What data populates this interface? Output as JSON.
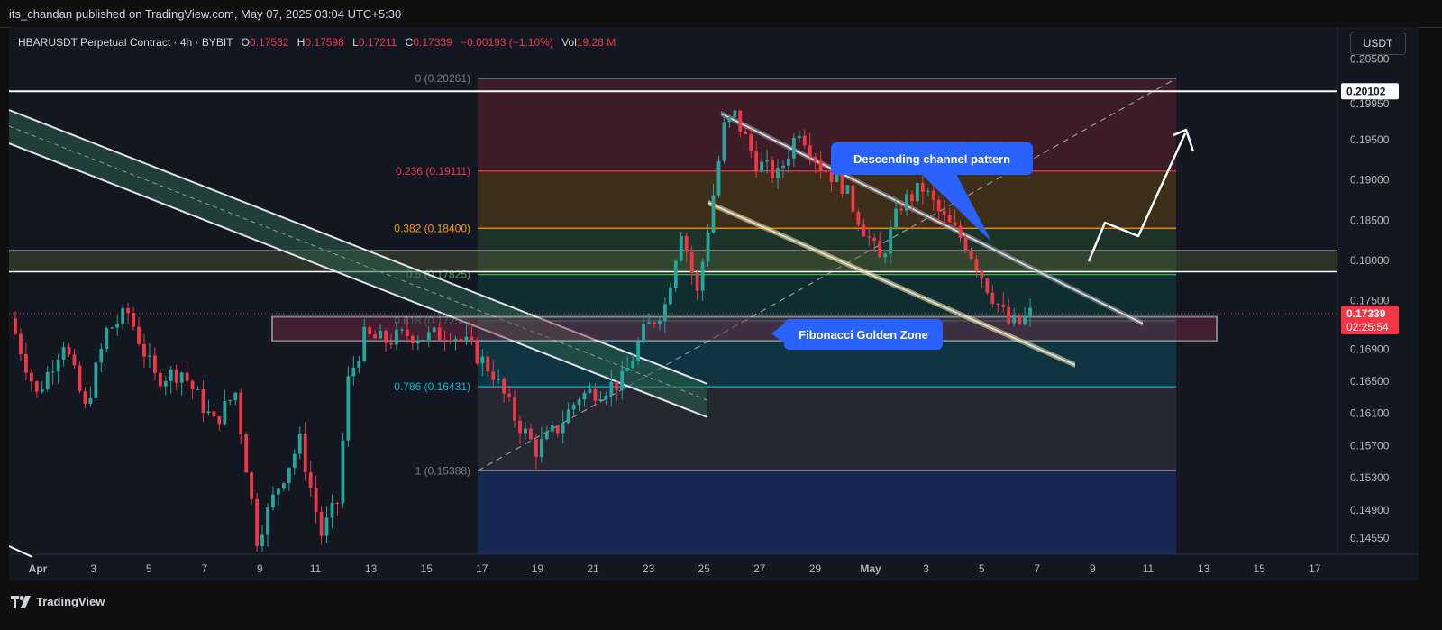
{
  "header": {
    "publisher_line": "its_chandan published on TradingView.com, May 07, 2025 03:04 UTC+5:30"
  },
  "legend": {
    "symbol": "HBARUSDT Perpetual Contract · 4h · BYBIT",
    "open_label": "O",
    "open": "0.17532",
    "high_label": "H",
    "high": "0.17598",
    "low_label": "L",
    "low": "0.17211",
    "close_label": "C",
    "close": "0.17339",
    "change": "−0.00193 (−1.10%)",
    "vol_label": "Vol",
    "vol": "19.28 M"
  },
  "unit_button": "USDT",
  "footer": {
    "brand": "TradingView"
  },
  "colors": {
    "background": "#131722",
    "up": "#26a69a",
    "down": "#f23645",
    "accent": "#2962ff"
  },
  "chart_data": {
    "type": "candlestick",
    "title": "",
    "ylim": [
      0.1435,
      0.209
    ],
    "price_ticks": [
      "0.20500",
      "0.19950",
      "0.19500",
      "0.19000",
      "0.18500",
      "0.18000",
      "0.17500",
      "0.16900",
      "0.16500",
      "0.16100",
      "0.15700",
      "0.15300",
      "0.14900",
      "0.14550"
    ],
    "time_ticks": [
      "Apr",
      "3",
      "5",
      "7",
      "9",
      "11",
      "13",
      "15",
      "17",
      "19",
      "21",
      "23",
      "25",
      "27",
      "29",
      "May",
      "3",
      "5",
      "7",
      "9",
      "11",
      "13",
      "15",
      "17"
    ],
    "price_badges": [
      {
        "label": "0.20102",
        "value": 0.20102,
        "style": "white"
      },
      {
        "label": "0.17339",
        "sub": "02:25:54",
        "value": 0.17339,
        "style": "red"
      }
    ],
    "fibonacci": [
      {
        "label": "0 (0.20261)",
        "ratio": 0,
        "price": 0.20261,
        "color": "#787b86"
      },
      {
        "label": "0.236 (0.19111)",
        "ratio": 0.236,
        "price": 0.19111,
        "color": "#f23645"
      },
      {
        "label": "0.382 (0.18400)",
        "ratio": 0.382,
        "price": 0.184,
        "color": "#ff9800"
      },
      {
        "label": "0.5 (0.17825)",
        "ratio": 0.5,
        "price": 0.17825,
        "color": "#4caf50"
      },
      {
        "label": "0.618 (0.17250)",
        "ratio": 0.618,
        "price": 0.1725,
        "color": "#089981"
      },
      {
        "label": "0.786 (0.16431)",
        "ratio": 0.786,
        "price": 0.16431,
        "color": "#00bcd4"
      },
      {
        "label": "1 (0.15388)",
        "ratio": 1,
        "price": 0.15388,
        "color": "#787b86"
      }
    ],
    "annotations": [
      "Descending channel pattern",
      "Fibonacci Golden Zone"
    ],
    "last_price": 0.17339
  }
}
